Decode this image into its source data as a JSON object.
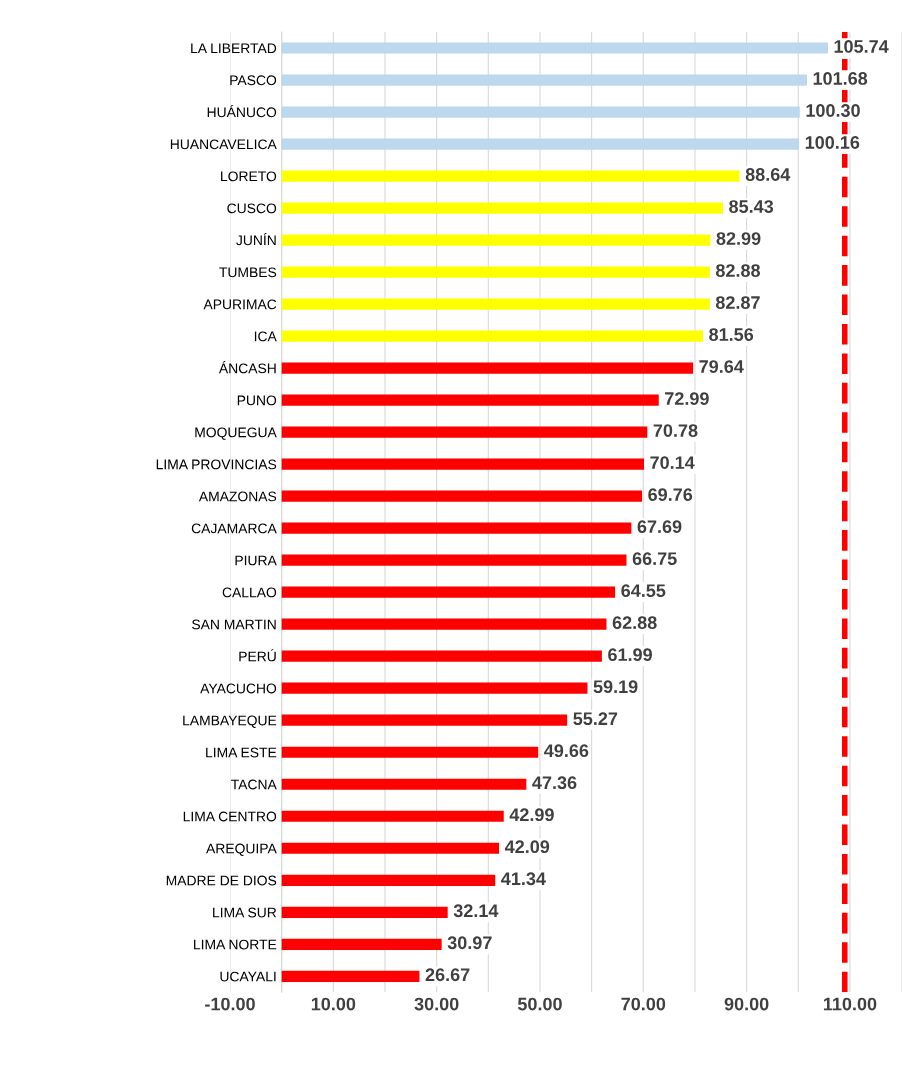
{
  "chart_data": {
    "type": "bar",
    "orientation": "horizontal",
    "categories": [
      "LA LIBERTAD",
      "PASCO",
      "HUÁNUCO",
      "HUANCAVELICA",
      "LORETO",
      "CUSCO",
      "JUNÍN",
      "TUMBES",
      "APURIMAC",
      "ICA",
      "ÁNCASH",
      "PUNO",
      "MOQUEGUA",
      "LIMA PROVINCIAS",
      "AMAZONAS",
      "CAJAMARCA",
      "PIURA",
      "CALLAO",
      "SAN MARTIN",
      "PERÚ",
      "AYACUCHO",
      "LAMBAYEQUE",
      "LIMA ESTE",
      "TACNA",
      "LIMA CENTRO",
      "AREQUIPA",
      "MADRE DE DIOS",
      "LIMA SUR",
      "LIMA NORTE",
      "UCAYALI"
    ],
    "values": [
      105.74,
      101.68,
      100.3,
      100.16,
      88.64,
      85.43,
      82.99,
      82.88,
      82.87,
      81.56,
      79.64,
      72.99,
      70.78,
      70.14,
      69.76,
      67.69,
      66.75,
      64.55,
      62.88,
      61.99,
      59.19,
      55.27,
      49.66,
      47.36,
      42.99,
      42.09,
      41.34,
      32.14,
      30.97,
      26.67
    ],
    "value_labels": [
      "105.74",
      "101.68",
      "100.30",
      "100.16",
      "88.64",
      "85.43",
      "82.99",
      "82.88",
      "82.87",
      "81.56",
      "79.64",
      "72.99",
      "70.78",
      "70.14",
      "69.76",
      "67.69",
      "66.75",
      "64.55",
      "62.88",
      "61.99",
      "59.19",
      "55.27",
      "49.66",
      "47.36",
      "42.99",
      "42.09",
      "41.34",
      "32.14",
      "30.97",
      "26.67"
    ],
    "colors": [
      "#bdd7ee",
      "#bdd7ee",
      "#bdd7ee",
      "#bdd7ee",
      "#ffff00",
      "#ffff00",
      "#ffff00",
      "#ffff00",
      "#ffff00",
      "#ffff00",
      "#ff0000",
      "#ff0000",
      "#ff0000",
      "#ff0000",
      "#ff0000",
      "#ff0000",
      "#ff0000",
      "#ff0000",
      "#ff0000",
      "#ff0000",
      "#ff0000",
      "#ff0000",
      "#ff0000",
      "#ff0000",
      "#ff0000",
      "#ff0000",
      "#ff0000",
      "#ff0000",
      "#ff0000",
      "#ff0000"
    ],
    "xlim": [
      -10,
      120
    ],
    "xticks": [
      {
        "value": -10,
        "label": "-10.00"
      },
      {
        "value": 0,
        "label": null
      },
      {
        "value": 10,
        "label": "10.00"
      },
      {
        "value": 20,
        "label": null
      },
      {
        "value": 30,
        "label": "30.00"
      },
      {
        "value": 40,
        "label": null
      },
      {
        "value": 50,
        "label": "50.00"
      },
      {
        "value": 60,
        "label": null
      },
      {
        "value": 70,
        "label": "70.00"
      },
      {
        "value": 80,
        "label": null
      },
      {
        "value": 90,
        "label": "90.00"
      },
      {
        "value": 100,
        "label": null
      },
      {
        "value": 110,
        "label": "110.00"
      },
      {
        "value": 120,
        "label": null
      }
    ],
    "grid": "x",
    "ref_lines": [
      {
        "axis": "x",
        "value": 109,
        "color": "#ff0000",
        "line_style": "dashed"
      }
    ]
  }
}
